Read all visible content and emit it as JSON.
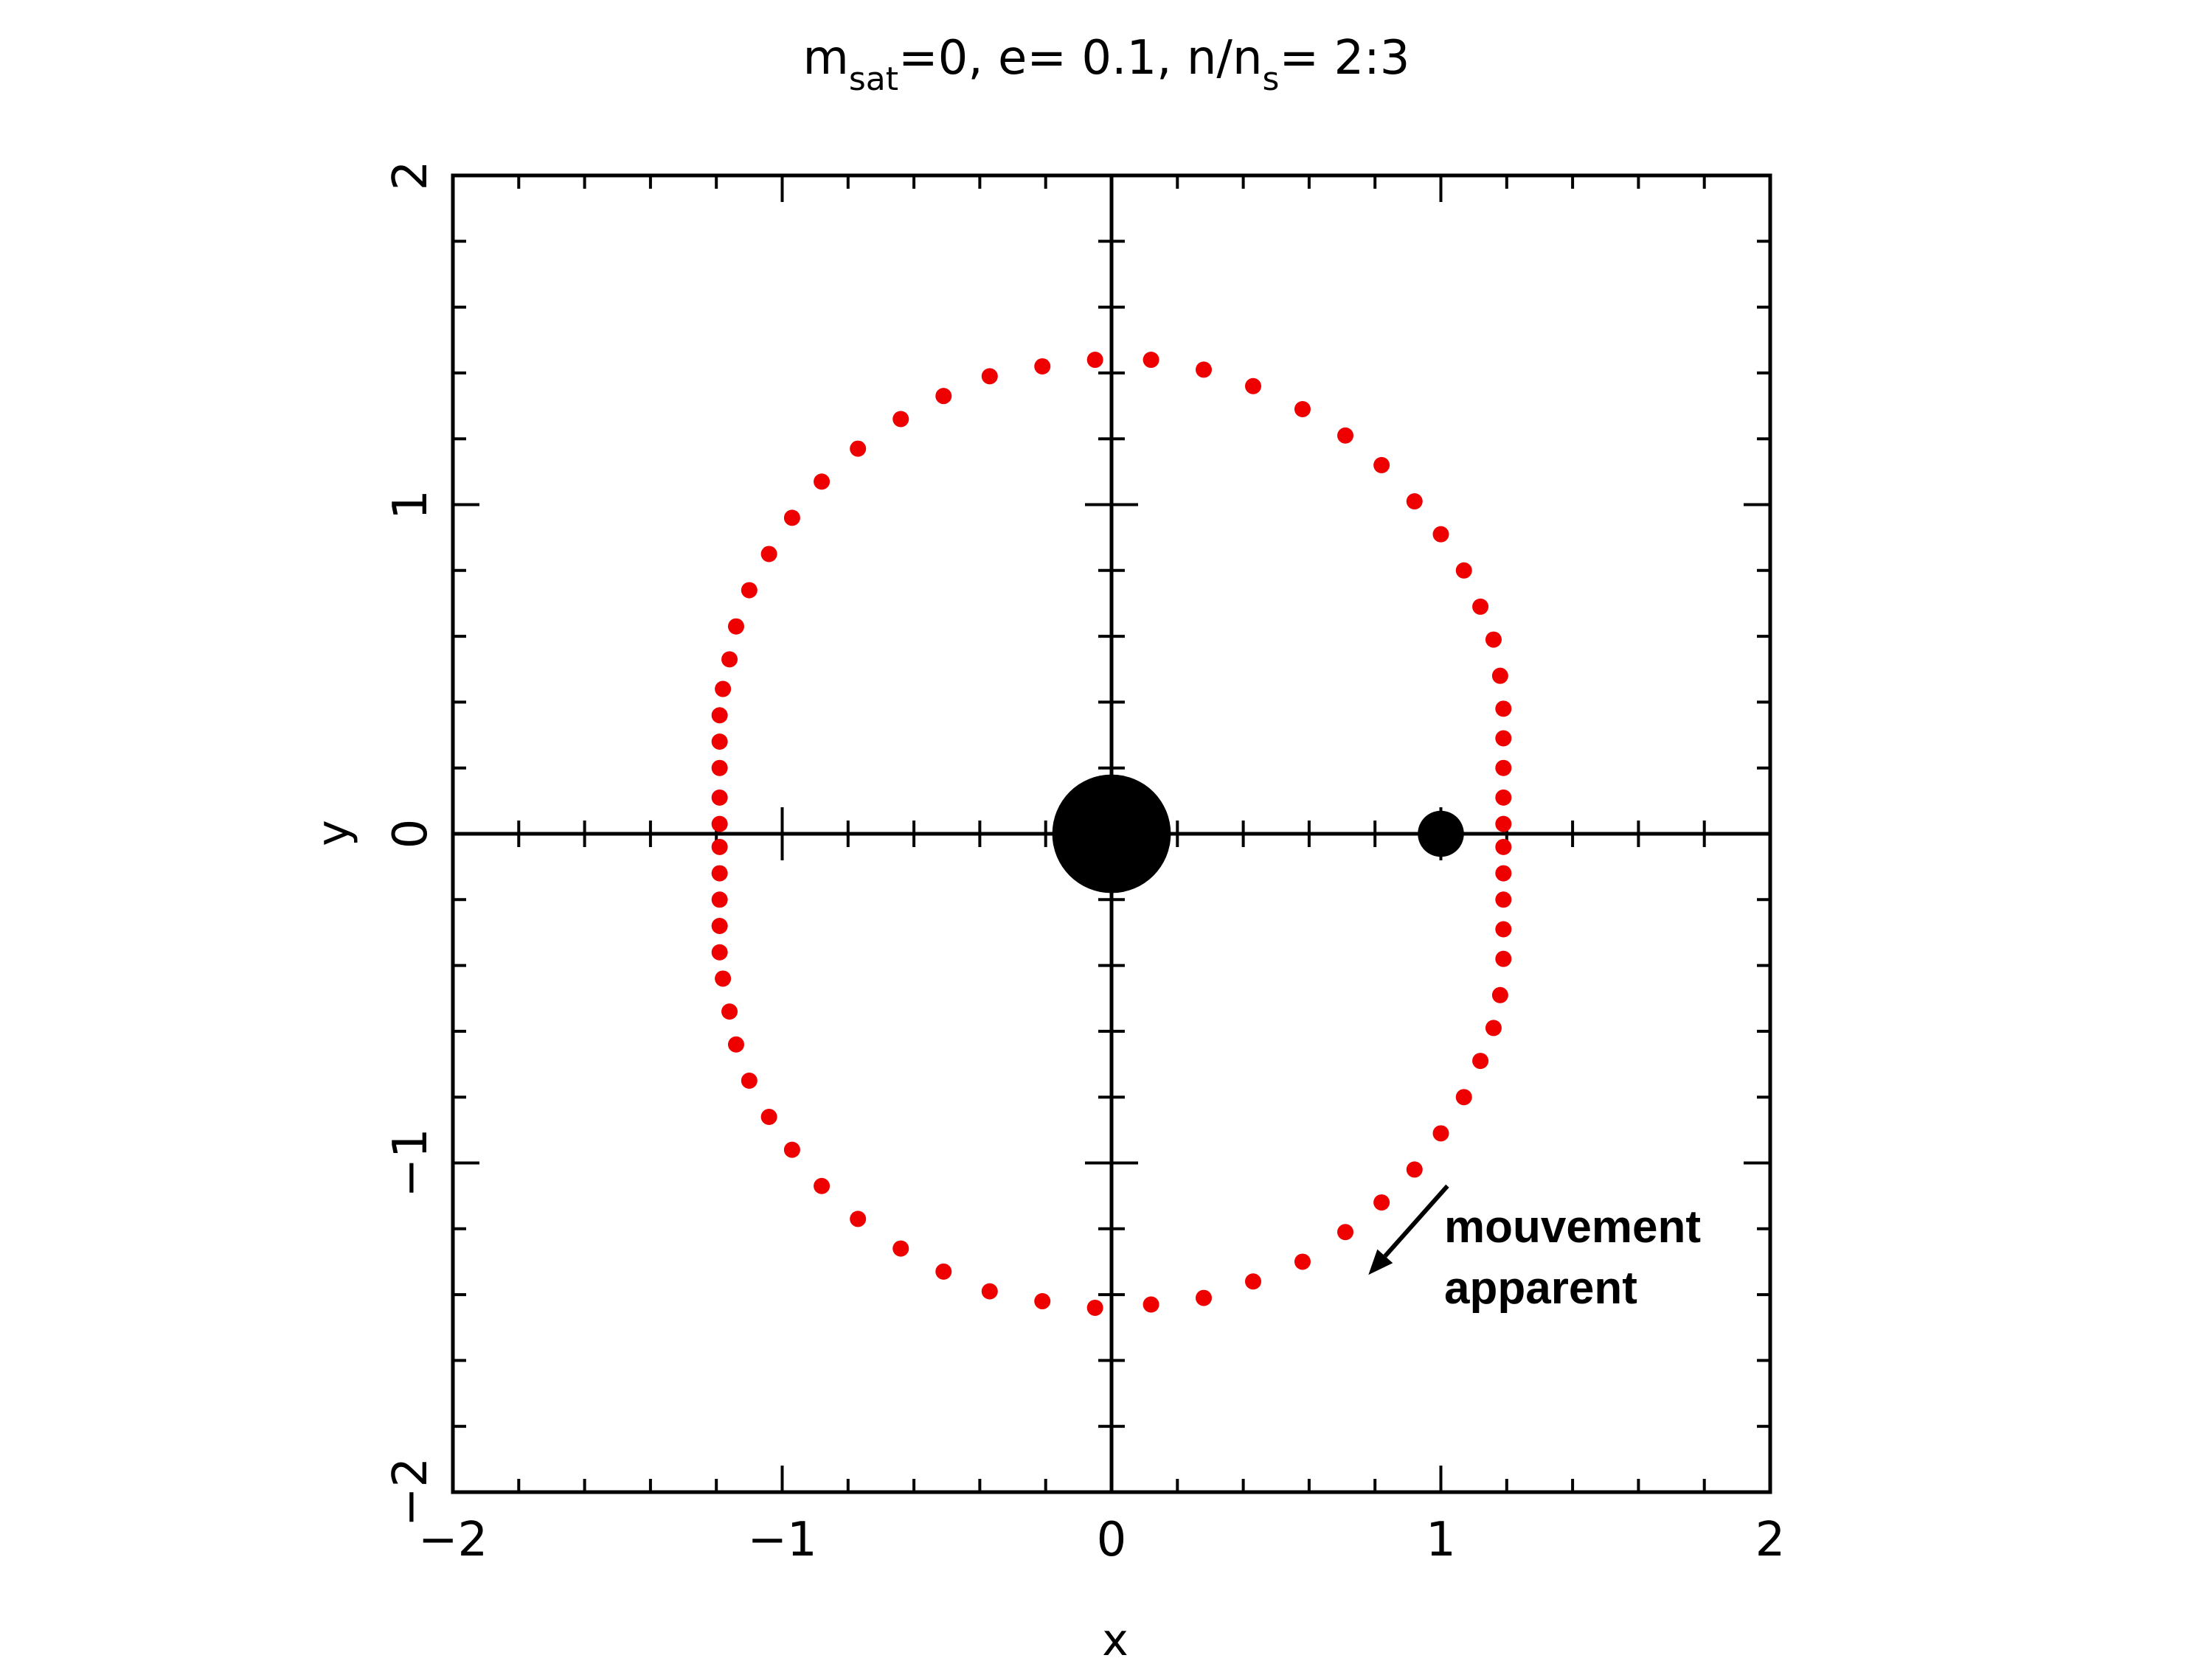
{
  "chart_data": {
    "type": "scatter",
    "title": {
      "m": "m",
      "m_sub": "sat",
      "mid": "=0, e= 0.1, n/n",
      "n_sub": "s",
      "end": "= 2:3"
    },
    "xlabel": "x",
    "ylabel": "y",
    "xlim": [
      -2,
      2
    ],
    "ylim": [
      -2,
      2
    ],
    "xticks": [
      -2,
      -1,
      0,
      1,
      2
    ],
    "yticks": [
      -2,
      -1,
      0,
      1,
      2
    ],
    "xtick_labels": [
      "−2",
      "−1",
      "0",
      "1",
      "2"
    ],
    "ytick_labels": [
      "−2",
      "−1",
      "0",
      "1",
      "2"
    ],
    "minor_tick_step": 0.2,
    "grid": false,
    "crosshair_axes": true,
    "series": [
      {
        "color": "#ee0000",
        "points": [
          [
            -0.05,
            1.44
          ],
          [
            0.12,
            1.44
          ],
          [
            0.28,
            1.41
          ],
          [
            0.43,
            1.36
          ],
          [
            0.58,
            1.29
          ],
          [
            0.71,
            1.21
          ],
          [
            0.82,
            1.12
          ],
          [
            0.92,
            1.01
          ],
          [
            1.0,
            0.91
          ],
          [
            1.07,
            0.8
          ],
          [
            1.12,
            0.69
          ],
          [
            1.16,
            0.59
          ],
          [
            1.18,
            0.48
          ],
          [
            1.19,
            0.38
          ],
          [
            1.19,
            0.29
          ],
          [
            1.19,
            0.2
          ],
          [
            1.19,
            0.11
          ],
          [
            1.19,
            0.03
          ],
          [
            1.19,
            -0.04
          ],
          [
            1.19,
            -0.12
          ],
          [
            1.19,
            -0.2
          ],
          [
            1.19,
            -0.29
          ],
          [
            1.19,
            -0.38
          ],
          [
            1.18,
            -0.49
          ],
          [
            1.16,
            -0.59
          ],
          [
            1.12,
            -0.69
          ],
          [
            1.07,
            -0.8
          ],
          [
            1.0,
            -0.91
          ],
          [
            0.92,
            -1.02
          ],
          [
            0.82,
            -1.12
          ],
          [
            0.71,
            -1.21
          ],
          [
            0.58,
            -1.3
          ],
          [
            0.43,
            -1.36
          ],
          [
            0.28,
            -1.41
          ],
          [
            0.12,
            -1.43
          ],
          [
            -0.05,
            -1.44
          ],
          [
            -0.21,
            -1.42
          ],
          [
            -0.37,
            -1.39
          ],
          [
            -0.51,
            -1.33
          ],
          [
            -0.64,
            -1.26
          ],
          [
            -0.77,
            -1.17
          ],
          [
            -0.88,
            -1.07
          ],
          [
            -0.97,
            -0.96
          ],
          [
            -1.04,
            -0.86
          ],
          [
            -1.1,
            -0.75
          ],
          [
            -1.14,
            -0.64
          ],
          [
            -1.16,
            -0.54
          ],
          [
            -1.18,
            -0.44
          ],
          [
            -1.19,
            -0.36
          ],
          [
            -1.19,
            -0.28
          ],
          [
            -1.19,
            -0.2
          ],
          [
            -1.19,
            -0.12
          ],
          [
            -1.19,
            -0.04
          ],
          [
            -1.19,
            0.03
          ],
          [
            -1.19,
            0.11
          ],
          [
            -1.19,
            0.2
          ],
          [
            -1.19,
            0.28
          ],
          [
            -1.19,
            0.36
          ],
          [
            -1.18,
            0.44
          ],
          [
            -1.16,
            0.53
          ],
          [
            -1.14,
            0.63
          ],
          [
            -1.1,
            0.74
          ],
          [
            -1.04,
            0.85
          ],
          [
            -0.97,
            0.96
          ],
          [
            -0.88,
            1.07
          ],
          [
            -0.77,
            1.17
          ],
          [
            -0.64,
            1.26
          ],
          [
            -0.51,
            1.33
          ],
          [
            -0.37,
            1.39
          ],
          [
            -0.21,
            1.42
          ]
        ]
      }
    ],
    "bodies": [
      {
        "x": 0,
        "y": 0,
        "radius": 0.18,
        "color": "#000000"
      },
      {
        "x": 1,
        "y": 0,
        "radius": 0.07,
        "color": "#000000"
      }
    ],
    "annotation": {
      "lines": [
        "mouvement",
        "apparent"
      ],
      "arrow_from": [
        1.02,
        -1.07
      ],
      "arrow_to": [
        0.78,
        -1.34
      ]
    }
  }
}
